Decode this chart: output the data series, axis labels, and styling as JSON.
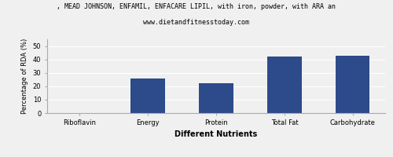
{
  "title_line1": ", MEAD JOHNSON, ENFAMIL, ENFACARE LIPIL, with iron, powder, with ARA an",
  "title_line2": "www.dietandfitnesstoday.com",
  "xlabel": "Different Nutrients",
  "ylabel": "Percentage of RDA (%)",
  "categories": [
    "Riboflavin",
    "Energy",
    "Protein",
    "Total Fat",
    "Carbohydrate"
  ],
  "values": [
    0,
    26,
    22,
    42,
    43
  ],
  "bar_color": "#2d4a8a",
  "ylim": [
    0,
    55
  ],
  "yticks": [
    0,
    10,
    20,
    30,
    40,
    50
  ],
  "background_color": "#f0f0f0",
  "title_fontsize": 6.0,
  "subtitle_fontsize": 6.0,
  "xlabel_fontsize": 7,
  "ylabel_fontsize": 6,
  "tick_fontsize": 6,
  "xlabel_fontweight": "bold",
  "bar_width": 0.5
}
